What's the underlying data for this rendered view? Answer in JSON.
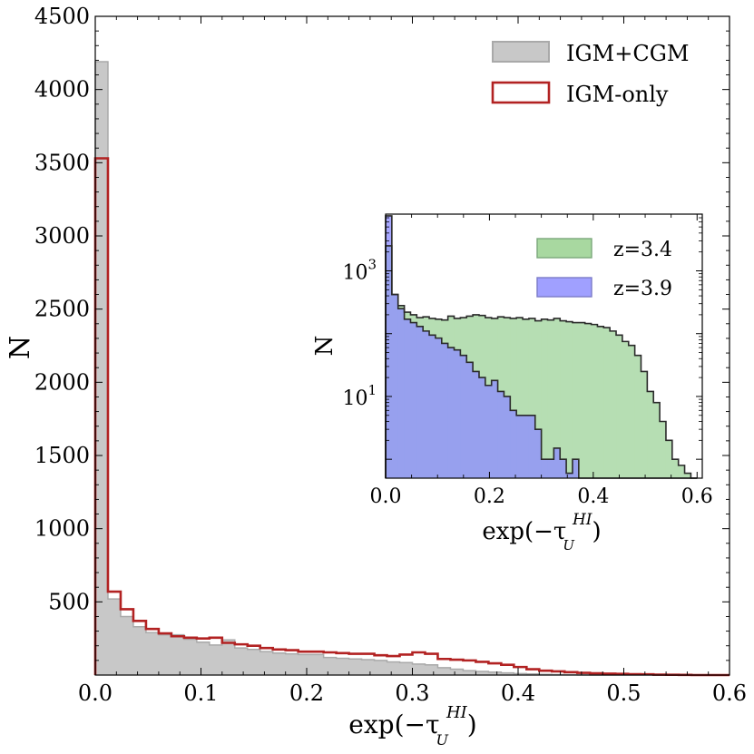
{
  "chart_data": [
    {
      "type": "histogram",
      "xlabel": "exp(−τ",
      "xlabel_sub": "U",
      "xlabel_sup": "HI",
      "xlabel_close": ")",
      "ylabel": "N",
      "xlim": [
        0.0,
        0.6
      ],
      "ylim": [
        0,
        4500
      ],
      "xticks": [
        "0.0",
        "0.1",
        "0.2",
        "0.3",
        "0.4",
        "0.5",
        "0.6"
      ],
      "yticks": [
        "500",
        "1000",
        "1500",
        "2000",
        "2500",
        "3000",
        "3500",
        "4000",
        "4500"
      ],
      "bin_width": 0.012,
      "legend": [
        {
          "name": "IGM+CGM",
          "fill": "#c8c8c8",
          "edge": "#a9a9a9"
        },
        {
          "name": "IGM-only",
          "fill": "none",
          "edge": "#b22222"
        }
      ],
      "series": [
        {
          "name": "IGM+CGM",
          "style": "filled",
          "values": [
            4190,
            520,
            400,
            330,
            290,
            275,
            275,
            245,
            225,
            205,
            240,
            185,
            175,
            160,
            150,
            145,
            140,
            140,
            120,
            115,
            110,
            105,
            100,
            90,
            85,
            75,
            70,
            50,
            40,
            30,
            25,
            20,
            15,
            10,
            8,
            5,
            3,
            2,
            1,
            0,
            0,
            0,
            0,
            0,
            0,
            0,
            0,
            0,
            0,
            0
          ]
        },
        {
          "name": "IGM-only",
          "style": "step",
          "values": [
            3530,
            570,
            450,
            370,
            315,
            285,
            265,
            255,
            250,
            255,
            220,
            210,
            200,
            185,
            175,
            170,
            160,
            160,
            155,
            150,
            145,
            145,
            135,
            130,
            140,
            155,
            145,
            110,
            105,
            100,
            90,
            80,
            70,
            55,
            40,
            30,
            25,
            20,
            15,
            12,
            10,
            8,
            6,
            5,
            3,
            2,
            1,
            0,
            0,
            0
          ]
        }
      ]
    },
    {
      "type": "histogram",
      "scale": "log",
      "xlabel": "exp(−τ",
      "xlabel_sub": "U",
      "xlabel_sup": "HI",
      "xlabel_close": ")",
      "ylabel": "N",
      "xlim": [
        0.0,
        0.61
      ],
      "ylim": [
        0.5,
        8000
      ],
      "xticks": [
        "0.0",
        "0.2",
        "0.4",
        "0.6"
      ],
      "yticks": [
        {
          "base": "10",
          "exp": "1",
          "value": 10
        },
        {
          "base": "10",
          "exp": "3",
          "value": 1000
        }
      ],
      "bin_width": 0.012,
      "legend": [
        {
          "name": "z=3.4",
          "fill": "#a8d8a0",
          "edge": "#7aa77a"
        },
        {
          "name": "z=3.9",
          "fill": "#a0a0ff",
          "edge": "#7a7ac8"
        }
      ],
      "series": [
        {
          "name": "z=3.4",
          "values": [
            2500,
            420,
            280,
            220,
            200,
            180,
            185,
            175,
            170,
            165,
            190,
            175,
            180,
            190,
            200,
            195,
            180,
            175,
            185,
            180,
            175,
            180,
            170,
            175,
            160,
            170,
            165,
            175,
            160,
            155,
            150,
            150,
            145,
            140,
            130,
            125,
            110,
            95,
            75,
            65,
            45,
            25,
            12,
            8,
            4,
            2,
            1,
            0.8,
            0.6,
            0.5
          ]
        },
        {
          "name": "z=3.9",
          "values": [
            7500,
            420,
            250,
            170,
            150,
            130,
            110,
            95,
            85,
            70,
            60,
            55,
            45,
            35,
            25,
            20,
            15,
            18,
            12,
            10,
            6,
            5,
            5,
            5,
            3,
            1,
            1,
            1.5,
            1,
            0.6,
            1,
            0.5,
            0.5,
            0.5,
            0.5,
            0.5,
            0.5,
            0.5,
            0.5,
            0.5,
            0.5,
            0.5,
            0.5,
            0.5,
            0.5,
            0.5,
            0.5,
            0.5,
            0.5,
            0.5
          ]
        }
      ]
    }
  ]
}
